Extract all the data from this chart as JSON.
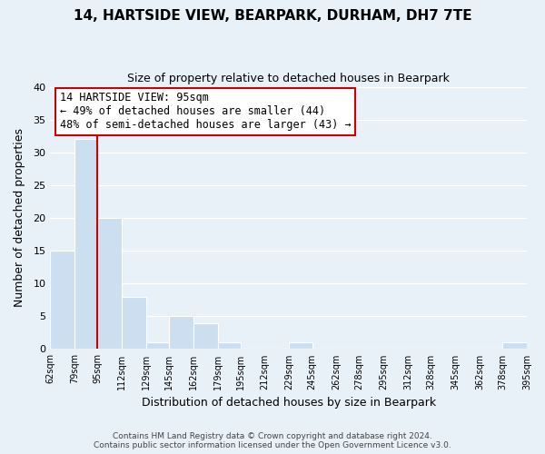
{
  "title": "14, HARTSIDE VIEW, BEARPARK, DURHAM, DH7 7TE",
  "subtitle": "Size of property relative to detached houses in Bearpark",
  "xlabel": "Distribution of detached houses by size in Bearpark",
  "ylabel": "Number of detached properties",
  "bin_edges": [
    62,
    79,
    95,
    112,
    129,
    145,
    162,
    179,
    195,
    212,
    229,
    245,
    262,
    278,
    295,
    312,
    328,
    345,
    362,
    378,
    395
  ],
  "bin_counts": [
    15,
    32,
    20,
    8,
    1,
    5,
    4,
    1,
    0,
    0,
    1,
    0,
    0,
    0,
    0,
    0,
    0,
    0,
    0,
    1
  ],
  "bar_color": "#ccdff1",
  "bar_edge_color": "#ffffff",
  "grid_color": "#ffffff",
  "bg_color": "#e8f0f8",
  "property_line_x": 95,
  "annotation_line1": "14 HARTSIDE VIEW: 95sqm",
  "annotation_line2": "← 49% of detached houses are smaller (44)",
  "annotation_line3": "48% of semi-detached houses are larger (43) →",
  "annotation_box_color": "#ffffff",
  "annotation_box_edge_color": "#cc0000",
  "property_line_color": "#cc0000",
  "ylim": [
    0,
    40
  ],
  "tick_labels": [
    "62sqm",
    "79sqm",
    "95sqm",
    "112sqm",
    "129sqm",
    "145sqm",
    "162sqm",
    "179sqm",
    "195sqm",
    "212sqm",
    "229sqm",
    "245sqm",
    "262sqm",
    "278sqm",
    "295sqm",
    "312sqm",
    "328sqm",
    "345sqm",
    "362sqm",
    "378sqm",
    "395sqm"
  ],
  "footer_line1": "Contains HM Land Registry data © Crown copyright and database right 2024.",
  "footer_line2": "Contains public sector information licensed under the Open Government Licence v3.0."
}
